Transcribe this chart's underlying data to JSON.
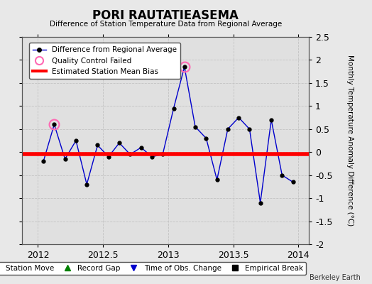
{
  "title": "PORI RAUTATIEASEMA",
  "subtitle": "Difference of Station Temperature Data from Regional Average",
  "ylabel": "Monthly Temperature Anomaly Difference (°C)",
  "xlabel_ticks": [
    2012,
    2012.5,
    2013,
    2013.5,
    2014
  ],
  "xlim": [
    2011.88,
    2014.08
  ],
  "ylim": [
    -2.0,
    2.5
  ],
  "yticks": [
    -2.0,
    -1.5,
    -1.0,
    -0.5,
    0,
    0.5,
    1.0,
    1.5,
    2.0,
    2.5
  ],
  "x_data": [
    2012.042,
    2012.125,
    2012.208,
    2012.292,
    2012.375,
    2012.458,
    2012.542,
    2012.625,
    2012.708,
    2012.792,
    2012.875,
    2012.958,
    2013.042,
    2013.125,
    2013.208,
    2013.292,
    2013.375,
    2013.458,
    2013.542,
    2013.625,
    2013.708,
    2013.792,
    2013.875,
    2013.958
  ],
  "y_data": [
    -0.2,
    0.6,
    -0.15,
    0.25,
    -0.7,
    0.15,
    -0.1,
    0.2,
    -0.05,
    0.1,
    -0.1,
    -0.05,
    0.95,
    1.85,
    0.55,
    0.3,
    -0.6,
    0.5,
    0.75,
    0.5,
    -1.1,
    0.7,
    -0.5,
    -0.65
  ],
  "qc_failed_indices": [
    1,
    13
  ],
  "bias_y": -0.05,
  "bias_x_start": 2011.88,
  "bias_x_end": 2014.08,
  "line_color": "#0000cc",
  "marker_color": "#000000",
  "bias_color": "#ff0000",
  "qc_color": "#ff69b4",
  "background_color": "#e8e8e8",
  "plot_bg_color": "#e0e0e0",
  "watermark": "Berkeley Earth",
  "leg1_labels": [
    "Difference from Regional Average",
    "Quality Control Failed",
    "Estimated Station Mean Bias"
  ],
  "leg2_labels": [
    "Station Move",
    "Record Gap",
    "Time of Obs. Change",
    "Empirical Break"
  ],
  "leg2_colors": [
    "#ff0000",
    "#008000",
    "#0000cc",
    "#000000"
  ],
  "leg2_markers": [
    "D",
    "^",
    "v",
    "s"
  ]
}
